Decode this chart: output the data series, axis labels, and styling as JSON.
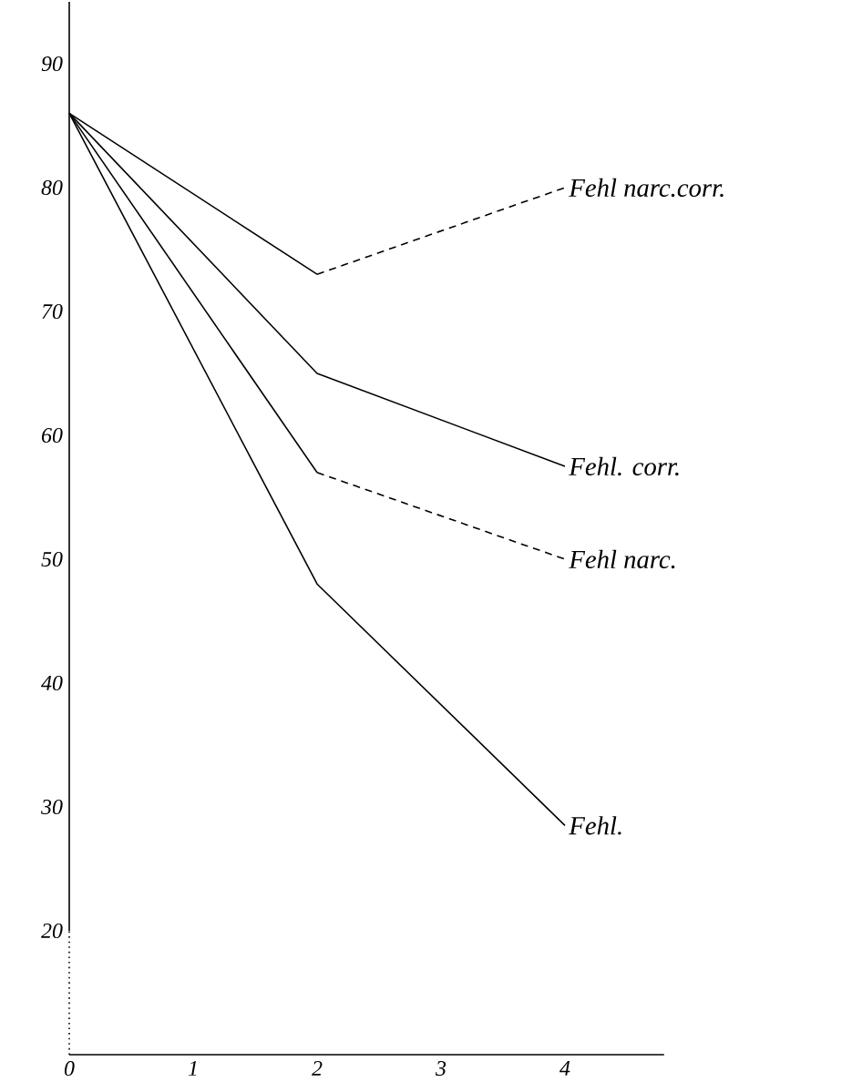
{
  "chart_data": {
    "type": "line",
    "x": [
      0,
      2,
      4
    ],
    "series": [
      {
        "color": "#000000",
        "line_style": "solid",
        "values": [
          86,
          73,
          null
        ]
      },
      {
        "name": "Fehl narc.corr.",
        "color": "#000000",
        "line_style": "dashed",
        "values": [
          null,
          73,
          80
        ]
      },
      {
        "name": "Fehl. corr.",
        "color": "#000000",
        "line_style": "solid",
        "values": [
          86,
          65,
          57.5
        ]
      },
      {
        "color": "#000000",
        "line_style": "solid",
        "values": [
          86,
          57,
          null
        ]
      },
      {
        "name": "Fehl narc.",
        "color": "#000000",
        "line_style": "dashed",
        "values": [
          null,
          57,
          50
        ]
      },
      {
        "name": "Fehl.",
        "color": "#000000",
        "line_style": "solid",
        "values": [
          86,
          48,
          28.5
        ]
      }
    ],
    "xlim": [
      0,
      4.8
    ],
    "ylim": [
      10,
      95
    ],
    "xticks": [
      0,
      1,
      2,
      3,
      4
    ],
    "yticks": [
      20,
      30,
      40,
      50,
      60,
      70,
      80,
      90
    ],
    "grid": false,
    "marker": "none"
  }
}
